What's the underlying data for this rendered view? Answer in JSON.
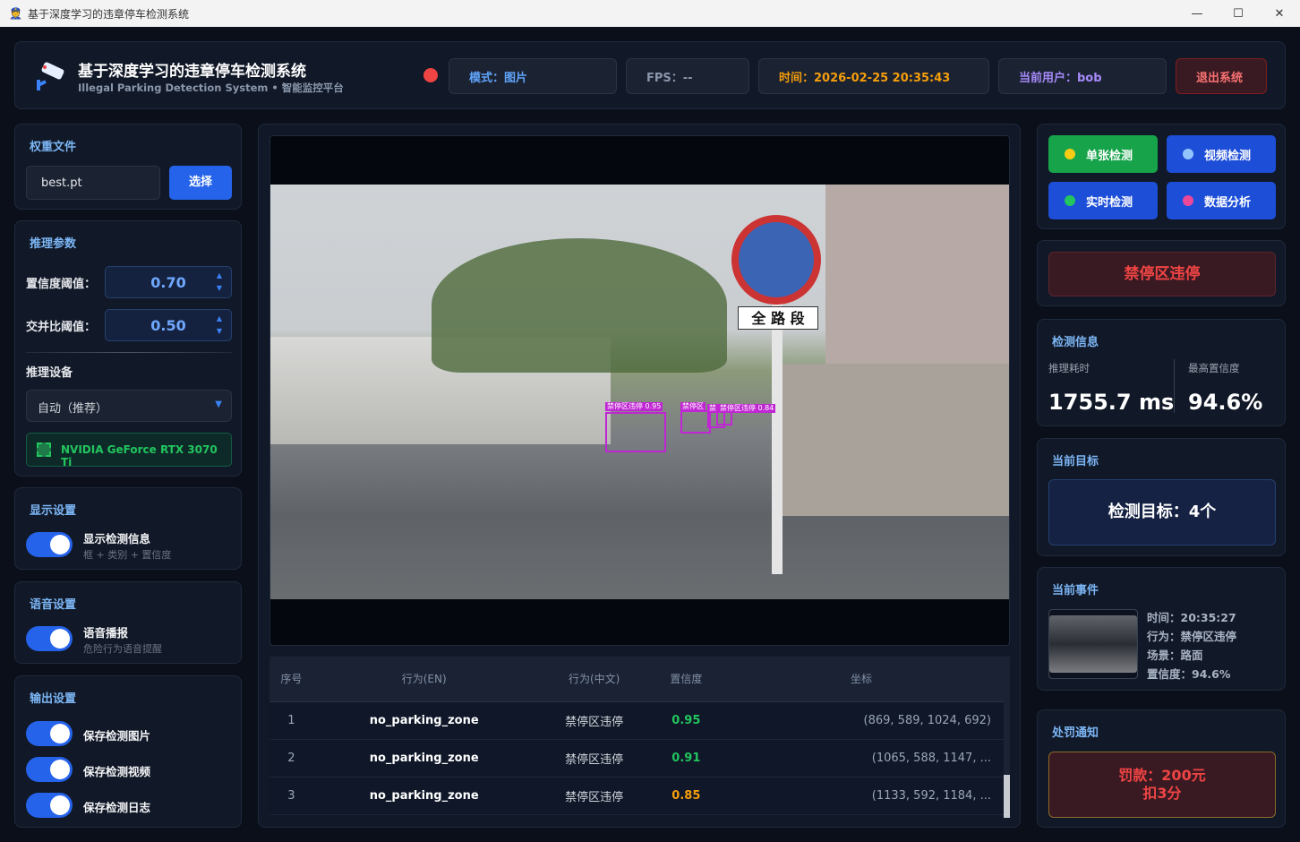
{
  "window": {
    "title": "基于深度学习的违章停车检测系统",
    "minimize": "—",
    "maximize": "☐",
    "close": "✕"
  },
  "header": {
    "title": "基于深度学习的违章停车检测系统",
    "subtitle": "Illegal Parking Detection System • 智能监控平台",
    "status_color": "#ef4444",
    "mode": "模式：图片",
    "fps": "FPS：--",
    "time": "时间：2026-02-25 20:35:43",
    "user": "当前用户：bob",
    "logout": "退出系统"
  },
  "left": {
    "weights": {
      "title": "权重文件",
      "value": "best.pt",
      "select": "选择"
    },
    "params": {
      "title": "推理参数",
      "conf_label": "置信度阈值：",
      "conf": "0.70",
      "iou_label": "交并比阈值：",
      "iou": "0.50",
      "device_label": "推理设备",
      "device": "自动（推荐）",
      "gpu": "NVIDIA GeForce RTX 3070 Ti"
    },
    "display": {
      "title": "显示设置",
      "toggle": "显示检测信息",
      "sub": "框 + 类别 + 置信度",
      "on": true
    },
    "voice": {
      "title": "语音设置",
      "toggle": "语音播报",
      "sub": "危险行为语音提醒",
      "on": true
    },
    "output": {
      "title": "输出设置",
      "items": [
        {
          "label": "保存检测图片",
          "on": true
        },
        {
          "label": "保存检测视频",
          "on": true
        },
        {
          "label": "保存检测日志",
          "on": true
        }
      ]
    }
  },
  "center": {
    "detections": [
      {
        "label": "禁停区违停 0.95"
      },
      {
        "label": "禁停区"
      },
      {
        "label": "禁"
      },
      {
        "label": "禁停区违停 0.84"
      }
    ],
    "sign_text": "全 路 段",
    "table": {
      "headers": [
        "序号",
        "行为(EN)",
        "行为(中文)",
        "置信度",
        "坐标"
      ],
      "rows": [
        [
          "1",
          "no_parking_zone",
          "禁停区违停",
          "0.95",
          "(869, 589, 1024, 692)"
        ],
        [
          "2",
          "no_parking_zone",
          "禁停区违停",
          "0.91",
          "(1065, 588, 1147, ..."
        ],
        [
          "3",
          "no_parking_zone",
          "禁停区违停",
          "0.85",
          "(1133, 592, 1184, ..."
        ]
      ],
      "conf_colors": [
        "#22c55e",
        "#22c55e",
        "#f59e0b"
      ]
    }
  },
  "right": {
    "buttons": [
      {
        "label": "单张检测",
        "bg": "#16a34a",
        "dot": "#facc15"
      },
      {
        "label": "视频检测",
        "bg": "#1d4ed8",
        "dot": "#93c5fd"
      },
      {
        "label": "实时检测",
        "bg": "#1d4ed8",
        "dot": "#22c55e"
      },
      {
        "label": "数据分析",
        "bg": "#1d4ed8",
        "dot": "#ec4899"
      }
    ],
    "violation": "禁停区违停",
    "info": {
      "title": "检测信息",
      "time_label": "推理耗时",
      "time": "1755.7 ms",
      "conf_label": "最高置信度",
      "conf": "94.6%"
    },
    "target": {
      "title": "当前目标",
      "text": "检测目标：4个"
    },
    "event": {
      "title": "当前事件",
      "time": "时间：20:35:27",
      "behavior": "行为：禁停区违停",
      "scene": "场景：路面",
      "conf": "置信度：94.6%"
    },
    "penalty": {
      "title": "处罚通知",
      "fine": "罚款：200元",
      "points": "扣3分"
    }
  }
}
